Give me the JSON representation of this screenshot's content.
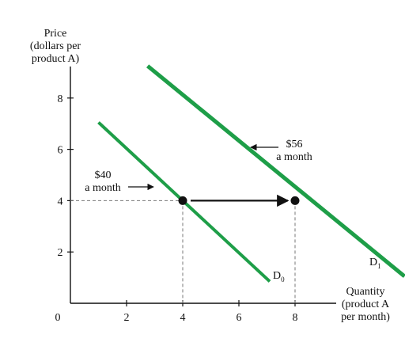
{
  "chart_data": {
    "type": "line",
    "ylabel": [
      "Price",
      "(dollars per",
      "product A)"
    ],
    "xlabel": [
      "Quantity",
      "(product A",
      "per month)"
    ],
    "origin_label": "0",
    "xlim": [
      0,
      9
    ],
    "ylim": [
      0,
      9
    ],
    "x_ticks": [
      2,
      4,
      6,
      8
    ],
    "y_ticks": [
      2,
      4,
      6,
      8
    ],
    "colors": {
      "demand": "#1e9e48",
      "axis": "#111111",
      "guide": "#777777"
    },
    "series": [
      {
        "label_main": "D",
        "label_sub": "0",
        "points": [
          [
            1,
            7.05
          ],
          [
            7.1,
            0.85
          ]
        ]
      },
      {
        "label_main": "D",
        "label_sub": "1",
        "points": [
          [
            2.75,
            9.25
          ],
          [
            11.9,
            1.05
          ]
        ]
      }
    ],
    "points": [
      [
        4,
        4
      ],
      [
        8,
        4
      ]
    ],
    "shift_arrow": {
      "from": [
        4,
        4
      ],
      "to": [
        8,
        4
      ]
    },
    "annotations": [
      {
        "lines": [
          "$40",
          "a month"
        ]
      },
      {
        "lines": [
          "$56",
          "a month"
        ]
      }
    ]
  }
}
